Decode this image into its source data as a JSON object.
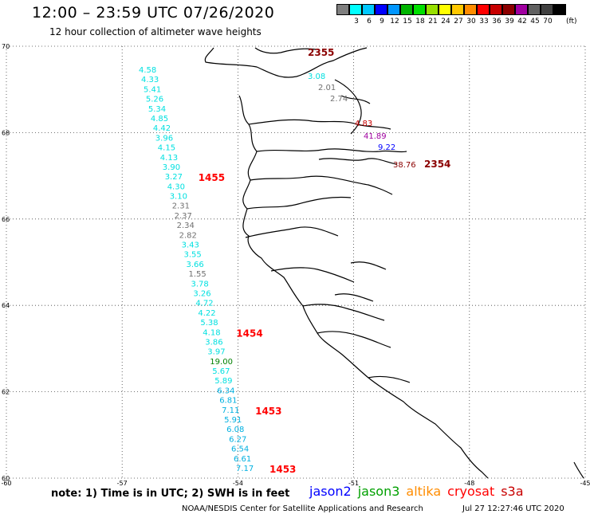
{
  "header": {
    "title": "12:00 – 23:59 UTC 07/26/2020",
    "subtitle": "12 hour collection of altimeter wave heights"
  },
  "scale": {
    "colors": [
      "#7f7f7f",
      "#00ffff",
      "#00c8ff",
      "#0000ff",
      "#0096ff",
      "#00b400",
      "#00e000",
      "#98e000",
      "#ffff00",
      "#ffc800",
      "#ff8c00",
      "#ff0000",
      "#c80000",
      "#8b0000",
      "#a000a0",
      "#606060",
      "#404040",
      "#000000"
    ],
    "labels": [
      "3",
      "6",
      "9",
      "12",
      "15",
      "18",
      "21",
      "24",
      "27",
      "30",
      "33",
      "36",
      "39",
      "42",
      "45",
      "70"
    ],
    "unit": "(ft)"
  },
  "map_data": {
    "lat_range": [
      60,
      70
    ],
    "lon_range": [
      -60,
      -45
    ],
    "lat_ticks": [
      "60",
      "62",
      "64",
      "66",
      "68",
      "70"
    ],
    "lon_ticks": [
      "-60",
      "-57",
      "-54",
      "-51",
      "-48",
      "-45"
    ],
    "track1": {
      "points": [
        [
          "4.58",
          "#00e0e0"
        ],
        [
          "4.33",
          "#00e0e0"
        ],
        [
          "5.41",
          "#00e0e0"
        ],
        [
          "5.26",
          "#00e0e0"
        ],
        [
          "5.34",
          "#00e0e0"
        ],
        [
          "4.85",
          "#00e0e0"
        ],
        [
          "4.42",
          "#00e0e0"
        ],
        [
          "3.96",
          "#00e0e0"
        ],
        [
          "4.15",
          "#00e0e0"
        ],
        [
          "4.13",
          "#00e0e0"
        ],
        [
          "3.90",
          "#00e0e0"
        ],
        [
          "3.27",
          "#00e0e0"
        ],
        [
          "4.30",
          "#00e0e0"
        ],
        [
          "3.10",
          "#00e0e0"
        ],
        [
          "2.31",
          "#707070"
        ],
        [
          "2.37",
          "#707070"
        ],
        [
          "2.34",
          "#707070"
        ],
        [
          "2.82",
          "#707070"
        ],
        [
          "3.43",
          "#00e0e0"
        ],
        [
          "3.55",
          "#00e0e0"
        ],
        [
          "3.66",
          "#00e0e0"
        ],
        [
          "1.55",
          "#707070"
        ],
        [
          "3.78",
          "#00e0e0"
        ],
        [
          "3.26",
          "#00e0e0"
        ],
        [
          "4.72",
          "#00e0e0"
        ],
        [
          "4.22",
          "#00e0e0"
        ],
        [
          "5.38",
          "#00e0e0"
        ],
        [
          "4.18",
          "#00e0e0"
        ],
        [
          "3.86",
          "#00e0e0"
        ],
        [
          "3.97",
          "#00e0e0"
        ],
        [
          "19.00",
          "#008000"
        ],
        [
          "5.67",
          "#00e0e0"
        ],
        [
          "5.89",
          "#00e0e0"
        ],
        [
          "6.34",
          "#00b0e0"
        ],
        [
          "6.81",
          "#00b0e0"
        ],
        [
          "7.11",
          "#00b0e0"
        ],
        [
          "5.91",
          "#00b0e0"
        ],
        [
          "6.08",
          "#00b0e0"
        ],
        [
          "6.27",
          "#00b0e0"
        ],
        [
          "6.54",
          "#00b0e0"
        ],
        [
          "6.61",
          "#00b0e0"
        ],
        [
          "7.17",
          "#00b0e0"
        ]
      ],
      "times": [
        {
          "label": "1455",
          "after_index": 11
        },
        {
          "label": "1454",
          "after_index": 27
        },
        {
          "label": "1453",
          "after_index": 35
        },
        {
          "label": "1453",
          "after_index": 41
        }
      ],
      "time_color": "#ff0000"
    },
    "track2": [
      {
        "label": "2355",
        "color": "#8b0000"
      },
      {
        "label": "3.08",
        "color": "#00e0e0"
      },
      {
        "label": "2.01",
        "color": "#707070"
      },
      {
        "label": "2.74",
        "color": "#707070"
      },
      {
        "label": "4.83",
        "color": "#c80000"
      },
      {
        "label": "41.89",
        "color": "#a000a0"
      },
      {
        "label": "9.22",
        "color": "#0000ff"
      },
      {
        "label": "38.76",
        "color": "#8b0000"
      },
      {
        "label": "2354",
        "color": "#8b0000"
      }
    ]
  },
  "footer": {
    "note": "note:  1) Time is in UTC;  2) SWH is in feet",
    "legend": [
      {
        "label": "jason2",
        "color": "#0000ff"
      },
      {
        "label": "jason3",
        "color": "#00a000"
      },
      {
        "label": "altika",
        "color": "#ff8c00"
      },
      {
        "label": "cryosat",
        "color": "#ff0000"
      },
      {
        "label": "s3a",
        "color": "#c80000"
      }
    ],
    "credit": "NOAA/NESDIS Center for Satellite Applications and Research",
    "stamp": "Jul 27 12:27:46 UTC 2020"
  }
}
